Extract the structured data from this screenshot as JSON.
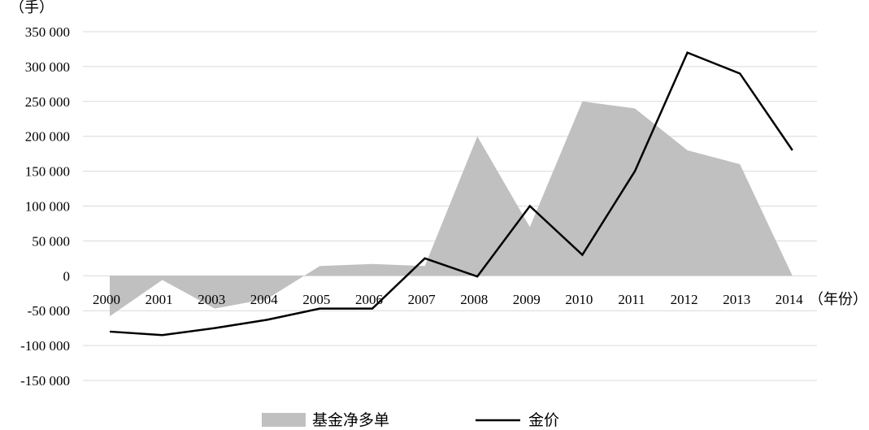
{
  "chart_data": {
    "type": "area+line",
    "title": "",
    "ylabel_unit": "（手）",
    "xlabel_unit": "（年份）",
    "ylim": [
      -150000,
      350000
    ],
    "yticks": [
      350000,
      300000,
      250000,
      200000,
      150000,
      100000,
      50000,
      0,
      -50000,
      -100000,
      -150000
    ],
    "ytick_labels": [
      "350 000",
      "300 000",
      "250 000",
      "200 000",
      "150 000",
      "100 000",
      "50 000",
      "0",
      "-50 000",
      "-100 000",
      "-150 000"
    ],
    "categories": [
      "2000",
      "2001",
      "2003",
      "2004",
      "2005",
      "2006",
      "2007",
      "2008",
      "2009",
      "2010",
      "2011",
      "2012",
      "2013",
      "2014"
    ],
    "grid": true,
    "legend_position": "bottom",
    "series": [
      {
        "name": "基金净多单",
        "kind": "area",
        "color": "#c0c0c0",
        "values": [
          -58000,
          -6000,
          -47000,
          -33000,
          14000,
          17000,
          14000,
          200000,
          70000,
          250000,
          240000,
          180000,
          160000,
          0
        ]
      },
      {
        "name": "金价",
        "kind": "line",
        "color": "#000000",
        "values": [
          -80000,
          -85000,
          -75000,
          -63000,
          -47000,
          -47000,
          25000,
          -1000,
          100000,
          30000,
          150000,
          320000,
          290000,
          180000
        ]
      }
    ]
  }
}
